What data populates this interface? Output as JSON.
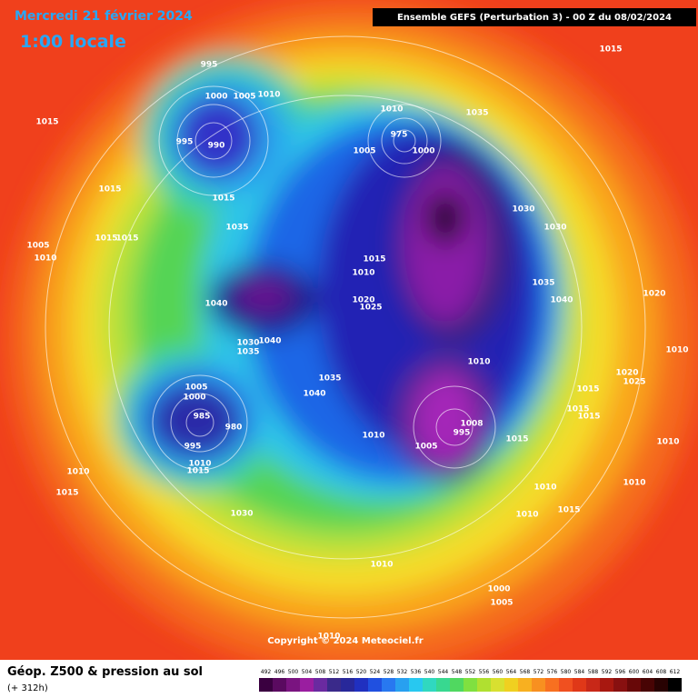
{
  "header": {
    "date": "Mercredi 21 février 2024",
    "time": "1:00 locale",
    "run": "Ensemble GEFS  (Perturbation 3)  -  00 Z du 08/02/2024"
  },
  "footer": {
    "title": "Géop. Z500 & pression au sol",
    "lead": "(+ 312h)",
    "copyright": "Copyright © 2024 Meteociel.fr"
  },
  "legend": {
    "values": [
      492,
      496,
      500,
      504,
      508,
      512,
      516,
      520,
      524,
      528,
      532,
      536,
      540,
      544,
      548,
      552,
      556,
      560,
      564,
      568,
      572,
      576,
      580,
      584,
      588,
      592,
      596,
      600,
      604,
      608,
      612
    ]
  },
  "pressure_labels": [
    "1015",
    "995",
    "1000",
    "1005",
    "1010",
    "1015",
    "995",
    "990",
    "1010",
    "1035",
    "975",
    "1005",
    "1000",
    "1015",
    "1015",
    "1030",
    "1030",
    "1035",
    "1005",
    "1010",
    "1015",
    "1015",
    "1015",
    "1010",
    "1035",
    "1040",
    "1020",
    "1020",
    "1025",
    "1040",
    "1030",
    "1035",
    "1040",
    "1010",
    "1010",
    "1020",
    "1025",
    "1005",
    "1000",
    "1035",
    "1040",
    "1015",
    "1015",
    "1015",
    "985",
    "980",
    "1008",
    "995",
    "1010",
    "1005",
    "995",
    "1015",
    "1010",
    "1010",
    "1015",
    "1010",
    "1010",
    "1010",
    "1015",
    "1030",
    "1010",
    "1015",
    "1010",
    "1000",
    "1005",
    "1010"
  ]
}
